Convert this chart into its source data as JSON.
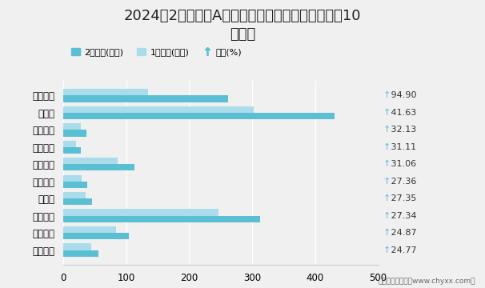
{
  "title": "2024年2月四川省A股上市企业市值环比增幅最大前10\n强企业",
  "categories": [
    "高新发展",
    "新易盛",
    "圣诺生物",
    "汇源通信",
    "宏达股份",
    "德恩精工",
    "依米康",
    "昊华科技",
    "中科信息",
    "厚普股份"
  ],
  "feb_values": [
    262,
    430,
    37,
    28,
    113,
    38,
    46,
    313,
    105,
    56
  ],
  "jan_values": [
    135,
    303,
    28,
    21,
    86,
    30,
    36,
    246,
    84,
    45
  ],
  "growth": [
    94.9,
    41.63,
    32.13,
    31.11,
    31.06,
    27.36,
    27.35,
    27.34,
    24.87,
    24.77
  ],
  "bar_color_feb": "#5bbfd4",
  "bar_color_jan": "#aadcec",
  "arrow_color": "#5bbfd4",
  "xlim": [
    0,
    500
  ],
  "xticks": [
    0,
    100,
    200,
    300,
    400,
    500
  ],
  "legend_labels": [
    "2月市值(亿元)",
    "1月市值(亿元)",
    "增幅(%)"
  ],
  "background_color": "#f0f0f0",
  "title_fontsize": 13,
  "tick_fontsize": 8.5,
  "footer": "制图：智研咨询（www.chyxx.com）"
}
